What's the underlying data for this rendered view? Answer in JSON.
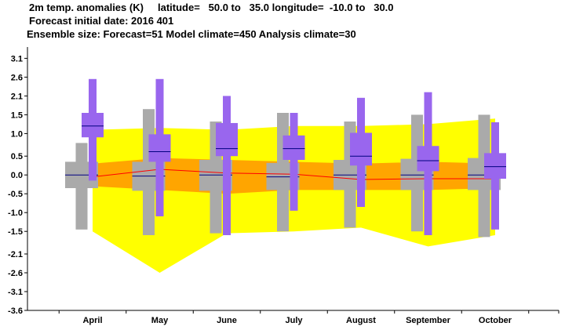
{
  "header": {
    "line1": "2m temp. anomalies (K)     latitude=   50.0 to   35.0 longitude=  -10.0 to   30.0",
    "line2": "Forecast initial date: 2016 401",
    "line3": "Ensemble size: Forecast=51 Model climate=450 Analysis climate=30"
  },
  "chart_data": {
    "type": "box",
    "categories": [
      "April",
      "May",
      "June",
      "July",
      "August",
      "September",
      "October"
    ],
    "y_ticks": [
      "3.1",
      "2.6",
      "2.1",
      "1.5",
      "1.0",
      "0.5",
      "0.0",
      "-0.5",
      "-1.0",
      "-1.5",
      "-2.1",
      "-2.6",
      "-3.1",
      "-3.6"
    ],
    "ylim": [
      -3.6,
      3.4
    ],
    "colors": {
      "forecast": "#9966ee",
      "model_climate": "#aaaaaa",
      "outer_band": "#ffff00",
      "inner_band": "#ffa500",
      "analysis_line": "#ff0000",
      "median": "#000080"
    },
    "analysis_climate": {
      "outer_low": [
        -1.5,
        -2.6,
        -1.55,
        -1.5,
        -1.4,
        -1.9,
        -1.6
      ],
      "outer_high": [
        1.2,
        1.25,
        1.2,
        1.3,
        1.3,
        1.35,
        1.5
      ],
      "inner_low": [
        -0.3,
        -0.4,
        -0.5,
        -0.4,
        -0.4,
        -0.4,
        -0.35
      ],
      "inner_high": [
        0.3,
        0.45,
        0.4,
        0.35,
        0.3,
        0.35,
        0.3
      ],
      "median": [
        -0.05,
        0.15,
        0.05,
        0.02,
        -0.12,
        -0.1,
        -0.1
      ]
    },
    "model_climate": {
      "whisker_low": [
        -1.45,
        -1.6,
        -1.55,
        -1.5,
        -1.4,
        -1.5,
        -1.65
      ],
      "box_low": [
        -0.35,
        -0.42,
        -0.42,
        -0.4,
        -0.4,
        -0.4,
        -0.4
      ],
      "median": [
        0.0,
        -0.03,
        0.0,
        -0.05,
        0.0,
        0.0,
        0.0
      ],
      "box_high": [
        0.35,
        0.35,
        0.4,
        0.32,
        0.4,
        0.43,
        0.45
      ],
      "whisker_high": [
        0.85,
        1.75,
        1.42,
        1.65,
        1.42,
        1.6,
        1.6
      ]
    },
    "forecast": {
      "whisker_low": [
        -0.15,
        -1.1,
        -1.6,
        -0.95,
        -0.85,
        -1.6,
        -1.45
      ],
      "box_low": [
        1.0,
        0.35,
        0.5,
        0.4,
        0.25,
        0.1,
        -0.1
      ],
      "median": [
        1.3,
        0.62,
        0.7,
        0.7,
        0.5,
        0.38,
        0.22
      ],
      "box_high": [
        1.65,
        1.08,
        1.38,
        1.05,
        1.12,
        0.77,
        0.58
      ],
      "whisker_high": [
        2.55,
        2.55,
        2.1,
        1.65,
        2.05,
        2.2,
        1.4
      ]
    }
  }
}
